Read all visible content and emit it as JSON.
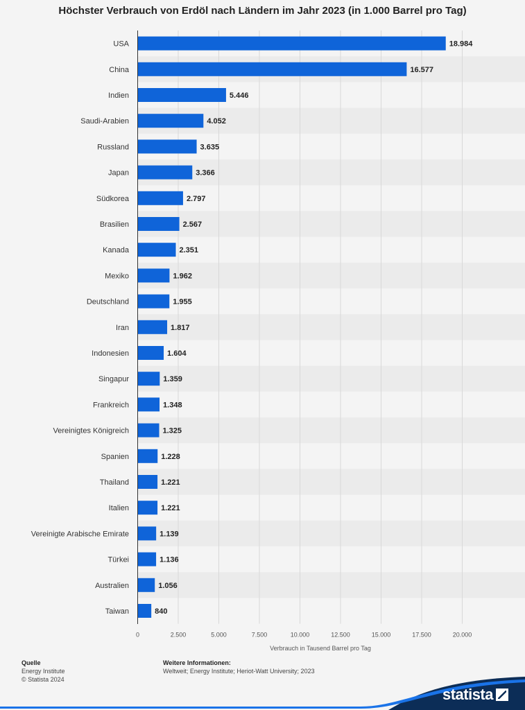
{
  "title": "Höchster Verbrauch von Erdöl nach Ländern im Jahr 2023 (in 1.000 Barrel pro Tag)",
  "chart_data": {
    "type": "bar",
    "orientation": "horizontal",
    "title": "Höchster Verbrauch von Erdöl nach Ländern im Jahr 2023 (in 1.000 Barrel pro Tag)",
    "xlabel": "Verbrauch in Tausend Barrel pro Tag",
    "ylabel": "",
    "xlim": [
      0,
      22500
    ],
    "ticks": [
      0,
      2500,
      5000,
      7500,
      10000,
      12500,
      15000,
      17500,
      20000
    ],
    "tick_labels": [
      "0",
      "2.500",
      "5.000",
      "7.500",
      "10.000",
      "12.500",
      "15.000",
      "17.500",
      "20.000"
    ],
    "categories": [
      "USA",
      "China",
      "Indien",
      "Saudi-Arabien",
      "Russland",
      "Japan",
      "Südkorea",
      "Brasilien",
      "Kanada",
      "Mexiko",
      "Deutschland",
      "Iran",
      "Indonesien",
      "Singapur",
      "Frankreich",
      "Vereinigtes Königreich",
      "Spanien",
      "Thailand",
      "Italien",
      "Vereinigte Arabische Emirate",
      "Türkei",
      "Australien",
      "Taiwan"
    ],
    "values": [
      18984,
      16577,
      5446,
      4052,
      3635,
      3366,
      2797,
      2567,
      2351,
      1962,
      1955,
      1817,
      1604,
      1359,
      1348,
      1325,
      1228,
      1221,
      1221,
      1139,
      1136,
      1056,
      840
    ],
    "value_labels": [
      "18.984",
      "16.577",
      "5.446",
      "4.052",
      "3.635",
      "3.366",
      "2.797",
      "2.567",
      "2.351",
      "1.962",
      "1.955",
      "1.817",
      "1.604",
      "1.359",
      "1.348",
      "1.325",
      "1.228",
      "1.221",
      "1.221",
      "1.139",
      "1.136",
      "1.056",
      "840"
    ],
    "bar_color": "#0f64d9",
    "grid": true,
    "legend": "none"
  },
  "footer": {
    "source_heading": "Quelle",
    "source_name": "Energy Institute",
    "copyright": "© Statista 2024",
    "info_heading": "Weitere Informationen:",
    "info_text": "Weltweit; Energy Institute; Heriot-Watt University; 2023"
  },
  "logo": {
    "text": "statista",
    "color": "#0c2d57"
  }
}
